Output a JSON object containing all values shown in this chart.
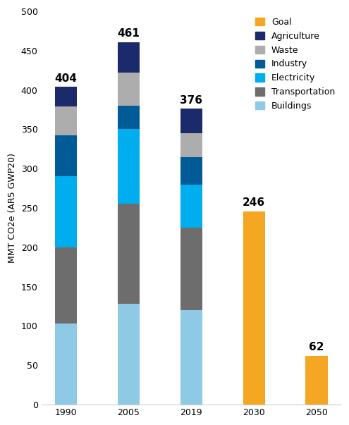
{
  "categories": [
    "1990",
    "2005",
    "2019",
    "2030",
    "2050"
  ],
  "totals": [
    404,
    461,
    376,
    246,
    62
  ],
  "segments": {
    "Buildings": [
      103,
      128,
      120,
      0,
      0
    ],
    "Transportation": [
      97,
      127,
      105,
      0,
      0
    ],
    "Electricity": [
      90,
      95,
      55,
      0,
      0
    ],
    "Industry": [
      52,
      30,
      35,
      0,
      0
    ],
    "Waste": [
      37,
      42,
      30,
      0,
      0
    ],
    "Agriculture": [
      25,
      39,
      31,
      0,
      0
    ],
    "Goal": [
      0,
      0,
      0,
      246,
      62
    ]
  },
  "colors": {
    "Buildings": "#8ECAE6",
    "Transportation": "#6D6D6D",
    "Electricity": "#00AEEF",
    "Industry": "#005B96",
    "Waste": "#ADADAD",
    "Agriculture": "#1B2A6B",
    "Goal": "#F5A623"
  },
  "legend_order": [
    "Goal",
    "Agriculture",
    "Waste",
    "Industry",
    "Electricity",
    "Transportation",
    "Buildings"
  ],
  "ylabel": "MMT CO2e (AR5 GWP20)",
  "ylim": [
    0,
    500
  ],
  "yticks": [
    0,
    50,
    100,
    150,
    200,
    250,
    300,
    350,
    400,
    450,
    500
  ],
  "background_color": "#ffffff",
  "bar_width": 0.35,
  "total_label_fontsize": 11,
  "axis_label_fontsize": 9,
  "tick_fontsize": 9,
  "legend_fontsize": 9
}
